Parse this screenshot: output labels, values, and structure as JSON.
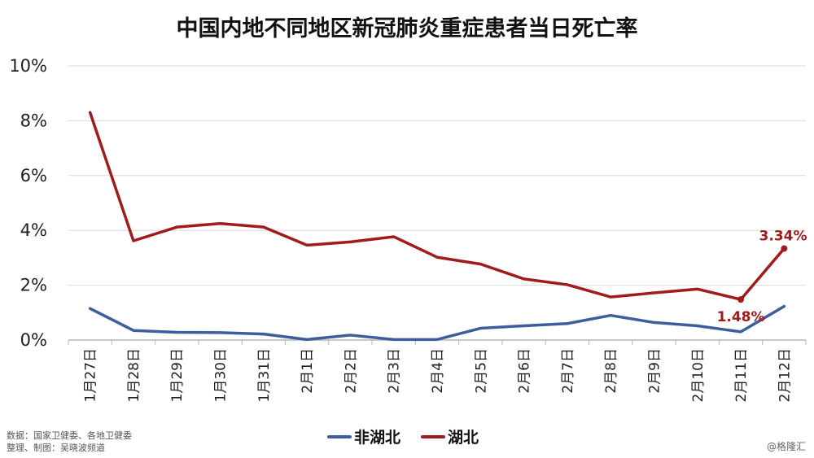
{
  "chart_data": {
    "type": "line",
    "title": "中国内地不同地区新冠肺炎重症患者当日死亡率",
    "categories": [
      "1月27日",
      "1月28日",
      "1月29日",
      "1月30日",
      "1月31日",
      "2月1日",
      "2月2日",
      "2月3日",
      "2月4日",
      "2月5日",
      "2月6日",
      "2月7日",
      "2月8日",
      "2月9日",
      "2月10日",
      "2月11日",
      "2月12日"
    ],
    "series": [
      {
        "name": "非湖北",
        "color": "#3d5d9e",
        "values": [
          1.15,
          0.35,
          0.28,
          0.27,
          0.22,
          0.02,
          0.18,
          0.02,
          0.02,
          0.43,
          0.52,
          0.6,
          0.9,
          0.64,
          0.52,
          0.3,
          1.23
        ]
      },
      {
        "name": "湖北",
        "color": "#a01c1c",
        "values": [
          8.3,
          3.62,
          4.12,
          4.25,
          4.12,
          3.46,
          3.58,
          3.77,
          3.02,
          2.77,
          2.23,
          2.02,
          1.57,
          1.72,
          1.86,
          1.48,
          3.34
        ]
      }
    ],
    "ylim": [
      0,
      10
    ],
    "yticks": [
      0,
      2,
      4,
      6,
      8,
      10
    ],
    "ytick_labels": [
      "0%",
      "2%",
      "4%",
      "6%",
      "8%",
      "10%"
    ],
    "grid": true,
    "legend_position": "bottom-center",
    "annotations": [
      {
        "series": "湖北",
        "index": 15,
        "text": "1.48%"
      },
      {
        "series": "湖北",
        "index": 16,
        "text": "3.34%"
      }
    ]
  },
  "source": {
    "line1": "数据：国家卫健委、各地卫健委",
    "line2": "整理、制图：吴晓波频道"
  },
  "watermark": "@格隆汇"
}
